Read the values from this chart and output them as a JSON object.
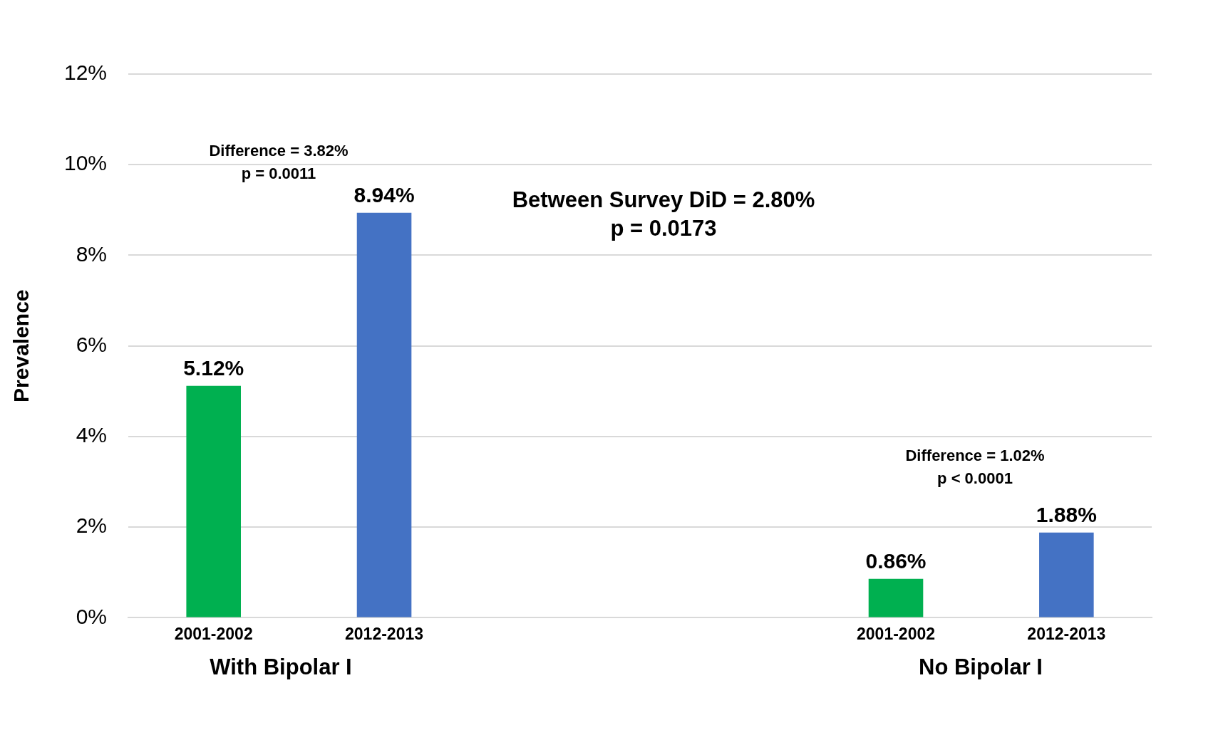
{
  "chart_data": {
    "type": "bar",
    "ylabel": "Prevalence",
    "categories": [
      "2001-2002",
      "2012-2013",
      null,
      null,
      "2001-2002",
      "2012-2013"
    ],
    "values": [
      5.12,
      8.94,
      null,
      null,
      0.86,
      1.88
    ],
    "colors": [
      "#00b050",
      "#4472c4",
      null,
      null,
      "#00b050",
      "#4472c4"
    ],
    "value_labels": [
      "5.12%",
      "8.94%",
      null,
      null,
      "0.86%",
      "1.88%"
    ],
    "ylim": [
      0,
      12
    ],
    "yticks": [
      {
        "value": 0,
        "label": "0%"
      },
      {
        "value": 2,
        "label": "2%"
      },
      {
        "value": 4,
        "label": "4%"
      },
      {
        "value": 6,
        "label": "6%"
      },
      {
        "value": 8,
        "label": "8%"
      },
      {
        "value": 10,
        "label": "10%"
      },
      {
        "value": 12,
        "label": "12%"
      }
    ],
    "grid": "y",
    "legend": false,
    "annotations": [
      "Difference = 3.82%\np = 0.0011",
      "Between Survey DiD = 2.80%\np = 0.0173",
      "Difference = 1.02%\np < 0.0001",
      "With Bipolar I",
      "No Bipolar I"
    ]
  }
}
